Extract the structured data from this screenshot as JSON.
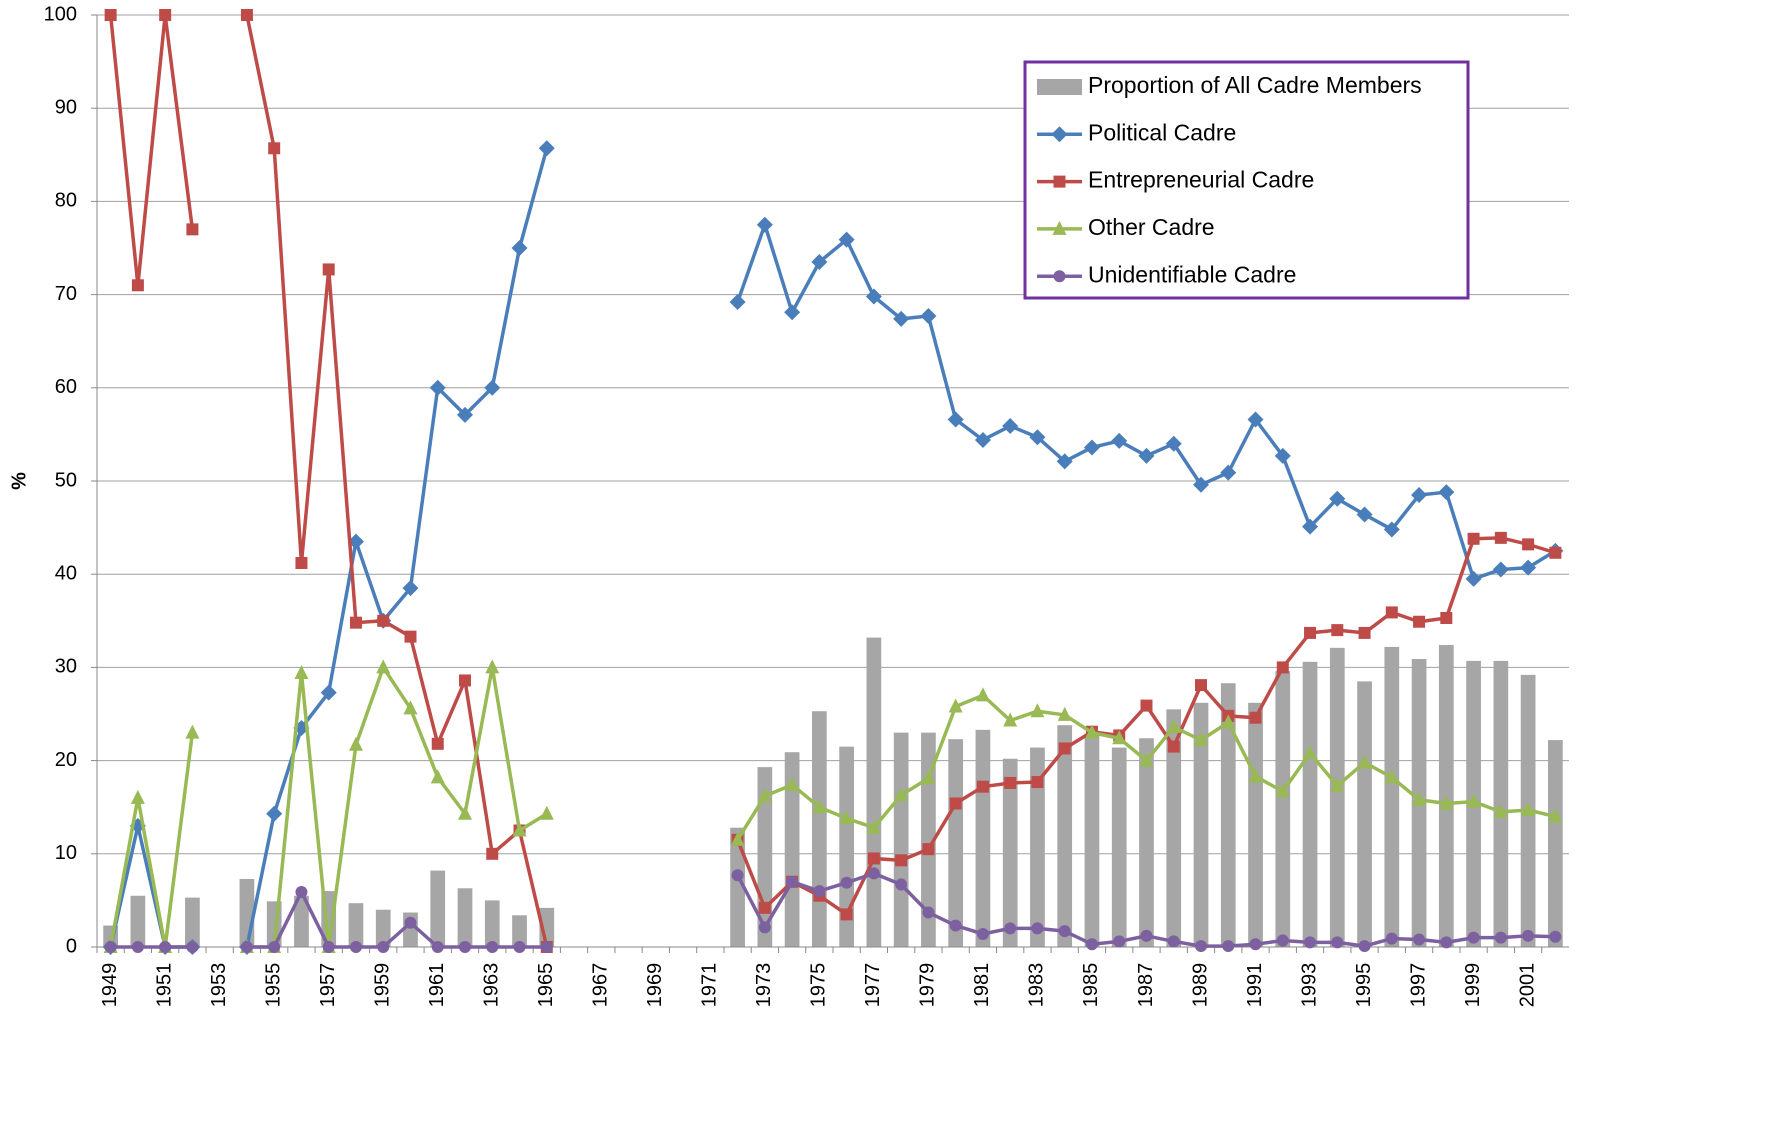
{
  "chart_data": {
    "type": "bar",
    "y_label": "%",
    "categories": [
      "1949",
      null,
      "1951",
      null,
      "1953",
      null,
      "1955",
      null,
      "1957",
      null,
      "1959",
      null,
      "1961",
      null,
      "1963",
      null,
      "1965",
      null,
      "1967",
      null,
      "1969",
      null,
      "1971",
      null,
      "1973",
      null,
      "1975",
      null,
      "1977",
      null,
      "1979",
      null,
      "1981",
      null,
      "1983",
      null,
      "1985",
      null,
      "1987",
      null,
      "1989",
      null,
      "1991",
      null,
      "1993",
      null,
      "1995",
      null,
      "1997",
      null,
      "1999",
      null,
      "2001",
      null
    ],
    "ylim": [
      0,
      100
    ],
    "yticks": [
      0,
      10,
      20,
      30,
      40,
      50,
      60,
      70,
      80,
      90,
      100
    ],
    "grid": true,
    "legend_border_color": "#7030a0",
    "series": [
      {
        "name": "Proportion of All Cadre Members",
        "type": "bar",
        "color": "#a6a6a6",
        "values": [
          2.3,
          5.5,
          null,
          5.3,
          null,
          7.3,
          4.9,
          5.5,
          6.0,
          4.7,
          4.0,
          3.7,
          8.2,
          6.3,
          5.0,
          3.4,
          4.2,
          null,
          null,
          null,
          null,
          null,
          null,
          12.8,
          19.3,
          20.9,
          25.3,
          21.5,
          33.2,
          23.0,
          23.0,
          22.3,
          23.3,
          20.2,
          21.4,
          23.8,
          22.9,
          21.4,
          22.4,
          25.5,
          26.2,
          28.3,
          26.2,
          29.6,
          30.6,
          32.1,
          28.5,
          32.2,
          30.9,
          32.4,
          30.7,
          30.7,
          29.2,
          22.2
        ]
      },
      {
        "name": "Political Cadre",
        "type": "line",
        "marker": "diamond",
        "color": "#4a7ebb",
        "values": [
          0,
          13,
          0,
          0,
          null,
          0,
          14.3,
          23.5,
          27.3,
          43.5,
          35,
          38.5,
          60,
          57.1,
          60,
          75,
          85.7,
          null,
          null,
          null,
          null,
          null,
          null,
          69.2,
          77.5,
          68.1,
          73.5,
          75.9,
          69.8,
          67.4,
          67.7,
          56.6,
          54.4,
          55.9,
          54.7,
          52.1,
          53.6,
          54.3,
          52.7,
          54.0,
          49.6,
          50.9,
          56.6,
          52.7,
          45.1,
          48.1,
          46.4,
          44.8,
          48.5,
          48.8,
          39.5,
          40.5,
          40.7,
          42.5
        ]
      },
      {
        "name": "Entrepreneurial Cadre",
        "type": "line",
        "marker": "square",
        "color": "#be4b48",
        "values": [
          100,
          71,
          100,
          77,
          null,
          100,
          85.7,
          41.2,
          72.7,
          34.8,
          35,
          33.3,
          21.8,
          28.6,
          10,
          12.5,
          0,
          null,
          null,
          null,
          null,
          null,
          null,
          11.5,
          4.2,
          7.0,
          5.5,
          3.5,
          9.5,
          9.3,
          10.5,
          15.4,
          17.2,
          17.6,
          17.7,
          21.3,
          23.1,
          22.7,
          25.9,
          21.5,
          28.1,
          24.8,
          24.6,
          30.0,
          33.7,
          34.0,
          33.7,
          35.9,
          34.9,
          35.3,
          43.8,
          43.9,
          43.2,
          42.3
        ]
      },
      {
        "name": "Other Cadre",
        "type": "line",
        "marker": "triangle",
        "color": "#98b954",
        "values": [
          0,
          16,
          0,
          23,
          null,
          0,
          0,
          29.4,
          0,
          21.7,
          30,
          25.6,
          18.2,
          14.3,
          30,
          12.5,
          14.3,
          null,
          null,
          null,
          null,
          null,
          null,
          11.5,
          16.2,
          17.4,
          15.0,
          13.8,
          12.8,
          16.3,
          18.1,
          25.8,
          27.0,
          24.3,
          25.3,
          24.9,
          23.0,
          22.4,
          20.0,
          23.6,
          22.2,
          24.1,
          18.3,
          16.7,
          20.8,
          17.3,
          19.8,
          18.2,
          15.8,
          15.4,
          15.6,
          14.5,
          14.7,
          14.0
        ]
      },
      {
        "name": "Unidentifiable Cadre",
        "type": "line",
        "marker": "circle",
        "color": "#7d60a0",
        "values": [
          0,
          0,
          0,
          0,
          null,
          0,
          0,
          5.9,
          0,
          0,
          0,
          2.6,
          0,
          0,
          0,
          0,
          0,
          null,
          null,
          null,
          null,
          null,
          null,
          7.7,
          2.1,
          7.0,
          6.0,
          6.9,
          7.9,
          6.7,
          3.7,
          2.3,
          1.4,
          2.0,
          2.0,
          1.7,
          0.3,
          0.6,
          1.2,
          0.6,
          0.1,
          0.1,
          0.3,
          0.7,
          0.5,
          0.5,
          0.1,
          0.9,
          0.8,
          0.5,
          1.0,
          1.0,
          1.2,
          1.1
        ]
      }
    ]
  }
}
